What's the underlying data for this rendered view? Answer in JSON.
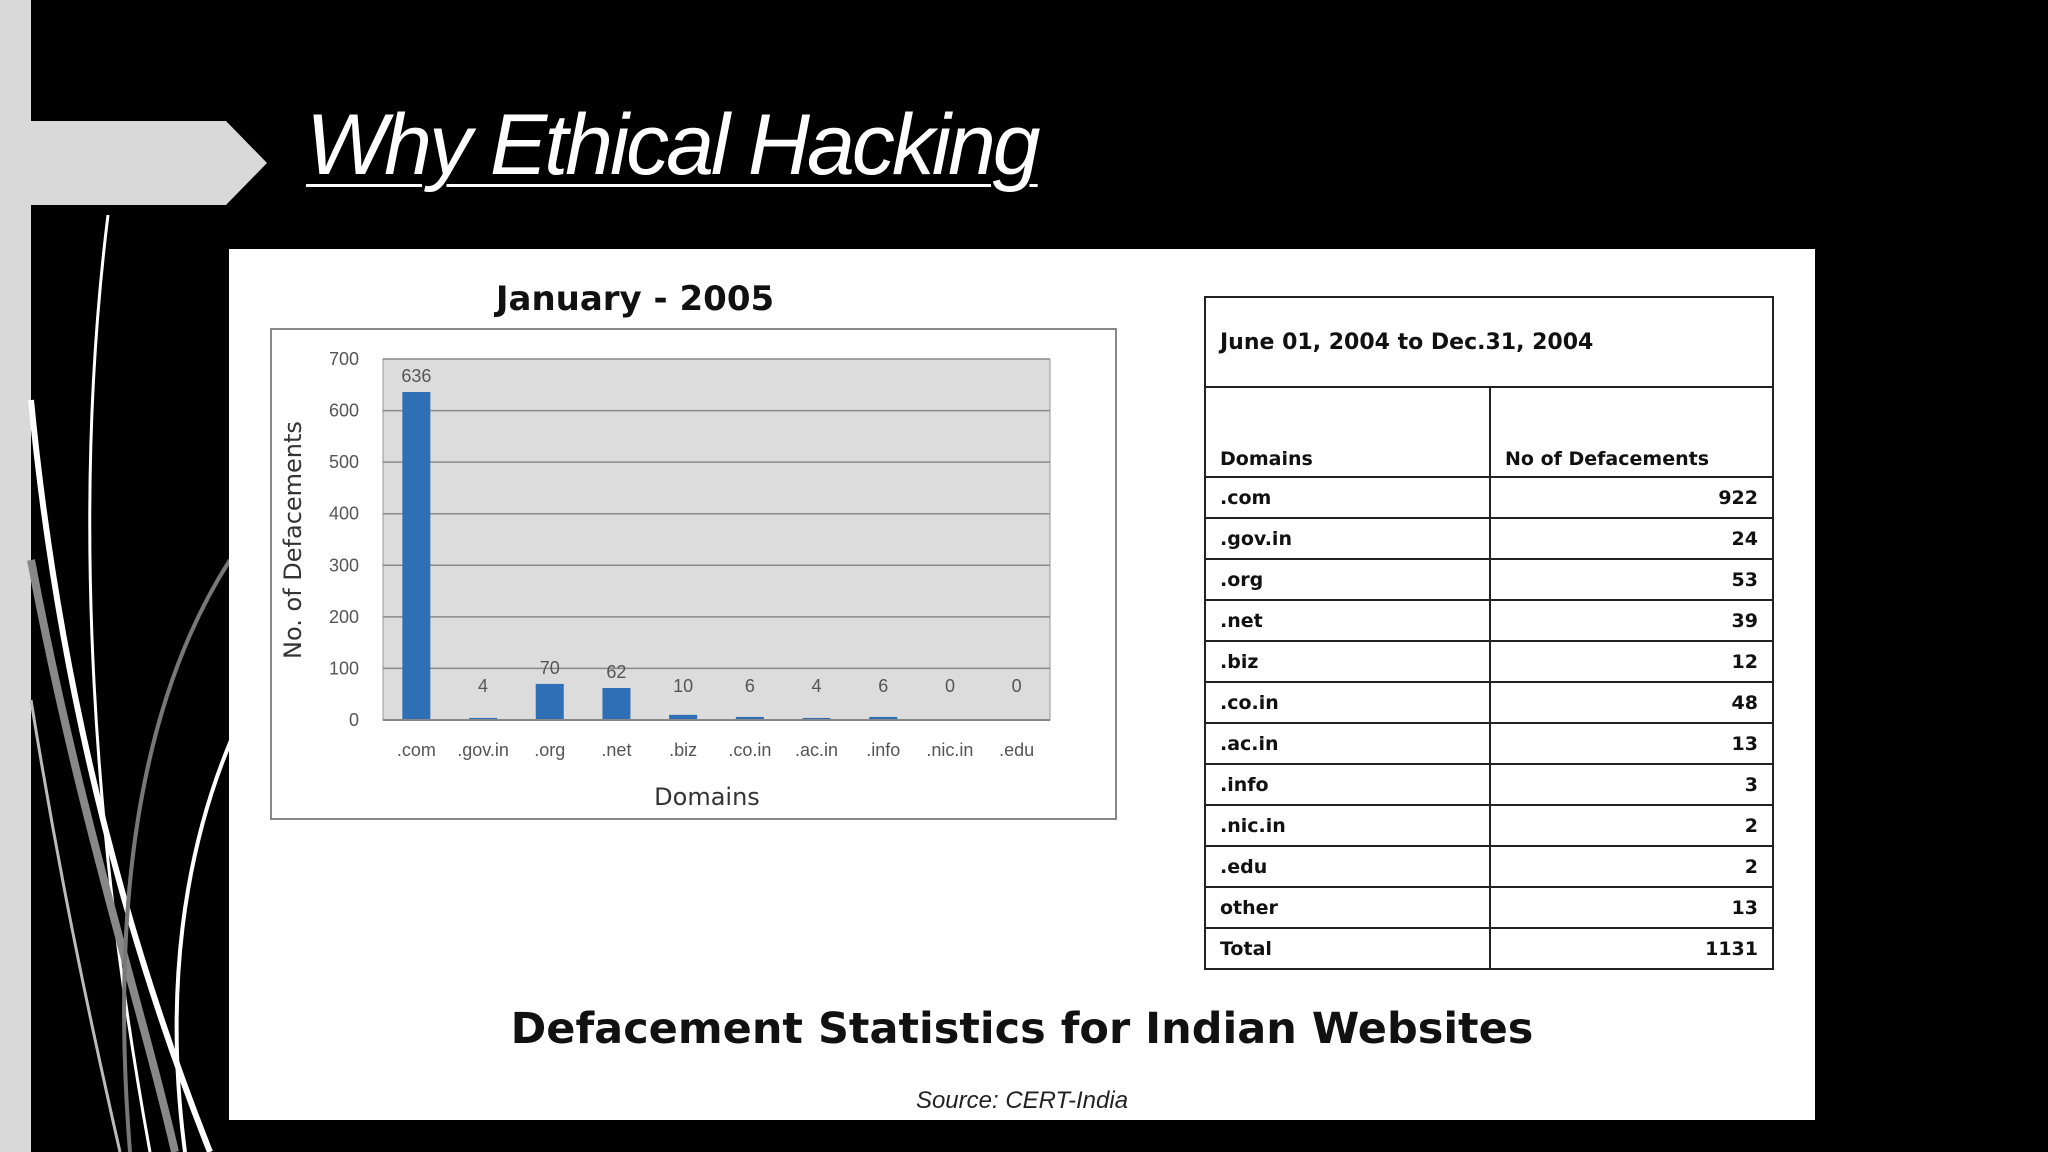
{
  "slide": {
    "title": "Why Ethical Hacking",
    "heading": "Defacement Statistics for Indian Websites",
    "source": "Source: CERT-India"
  },
  "colors": {
    "bar": "#2f6fb5",
    "plot_bg": "#dcdcdc",
    "background": "#000000",
    "strip": "#d9d9d9"
  },
  "chart_data": {
    "type": "bar",
    "title": "January - 2005",
    "xlabel": "Domains",
    "ylabel": "No. of Defacements",
    "categories": [
      ".com",
      ".gov.in",
      ".org",
      ".net",
      ".biz",
      ".co.in",
      ".ac.in",
      ".info",
      ".nic.in",
      ".edu"
    ],
    "values": [
      636,
      4,
      70,
      62,
      10,
      6,
      4,
      6,
      0,
      0
    ],
    "ylim": [
      0,
      700
    ],
    "yticks": [
      0,
      100,
      200,
      300,
      400,
      500,
      600,
      700
    ],
    "grid": true,
    "legend": "none"
  },
  "table": {
    "period": "June 01, 2004 to Dec.31, 2004",
    "headers": [
      "Domains",
      "No of Defacements"
    ],
    "rows": [
      [
        ".com",
        "922"
      ],
      [
        ".gov.in",
        "24"
      ],
      [
        ".org",
        "53"
      ],
      [
        ".net",
        "39"
      ],
      [
        ".biz",
        "12"
      ],
      [
        ".co.in",
        "48"
      ],
      [
        ".ac.in",
        "13"
      ],
      [
        ".info",
        "3"
      ],
      [
        ".nic.in",
        "2"
      ],
      [
        ".edu",
        "2"
      ],
      [
        "other",
        "13"
      ],
      [
        "Total",
        "1131"
      ]
    ]
  }
}
